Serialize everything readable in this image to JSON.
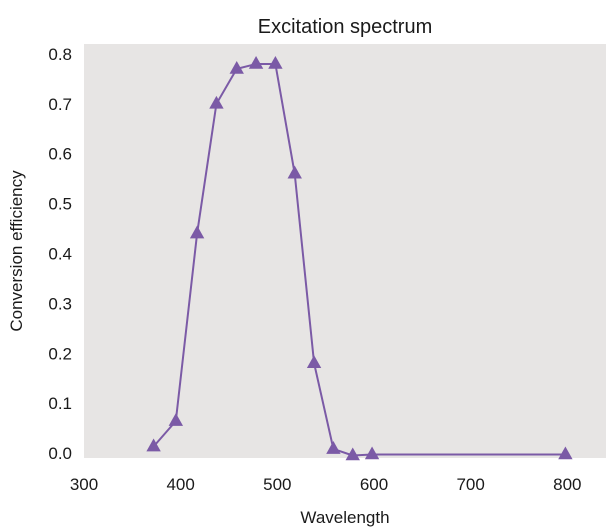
{
  "chart_data": {
    "type": "line",
    "title": "Excitation spectrum",
    "xlabel": "Wavelength",
    "ylabel": "Conversion efficiency",
    "xlim": [
      300,
      840
    ],
    "ylim": [
      -0.01,
      0.82
    ],
    "xticks": [
      300,
      400,
      500,
      600,
      700,
      800
    ],
    "xtick_labels": [
      "300",
      "400",
      "500",
      "600",
      "700",
      "800"
    ],
    "yticks": [
      0.0,
      0.1,
      0.2,
      0.3,
      0.4,
      0.5,
      0.6,
      0.7,
      0.8
    ],
    "ytick_labels": [
      "0.0",
      "0.1",
      "0.2",
      "0.3",
      "0.4",
      "0.5",
      "0.6",
      "0.7",
      "0.8"
    ],
    "grid": false,
    "series": [
      {
        "marker": "triangle",
        "color": "#7b5aa6",
        "x": [
          372,
          395,
          417,
          437,
          458,
          478,
          498,
          518,
          538,
          558,
          578,
          598,
          798
        ],
        "y": [
          0.013,
          0.064,
          0.44,
          0.7,
          0.77,
          0.78,
          0.78,
          0.56,
          0.18,
          0.008,
          -0.005,
          -0.003,
          -0.003
        ]
      }
    ]
  }
}
